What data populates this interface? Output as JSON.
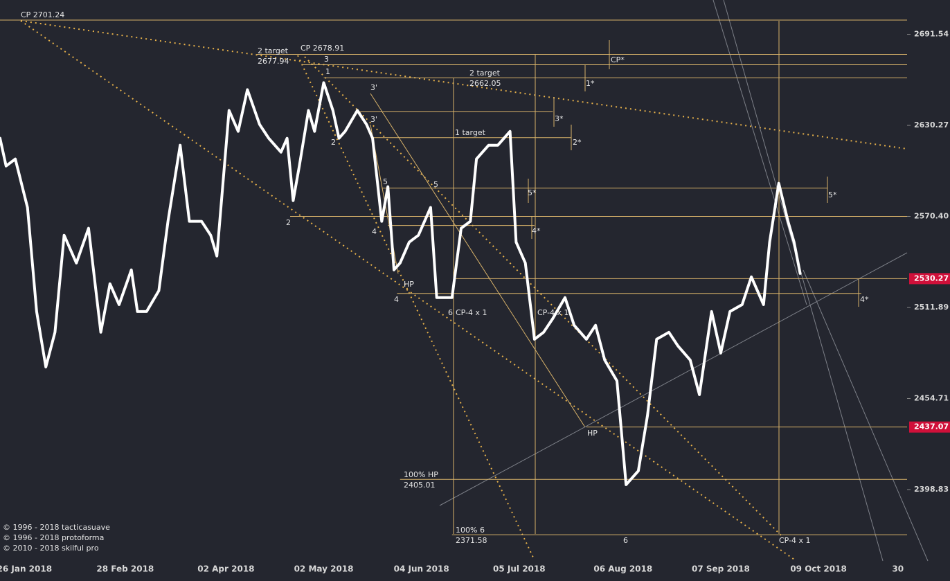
{
  "chart_data": {
    "type": "line",
    "log_scale": true,
    "xlim": [
      -8,
      289
    ],
    "ylim": [
      2358,
      2715
    ],
    "xticks": [
      {
        "value": 0,
        "label": "26 Jan 2018"
      },
      {
        "value": 33,
        "label": "28 Feb 2018"
      },
      {
        "value": 66,
        "label": "02 Apr 2018"
      },
      {
        "value": 98,
        "label": "02 May 2018"
      },
      {
        "value": 130,
        "label": "04 Jun 2018"
      },
      {
        "value": 162,
        "label": "05 Jul 2018"
      },
      {
        "value": 196,
        "label": "06 Aug 2018"
      },
      {
        "value": 228,
        "label": "07 Sep 2018"
      },
      {
        "value": 260,
        "label": "09 Oct 2018"
      },
      {
        "value": 286,
        "label": "30"
      }
    ],
    "yticks": [
      2398.83,
      2454.71,
      2511.89,
      {
        "value": 2570.4,
        "label": "2570.40"
      },
      2630.27,
      2691.54
    ],
    "marked_prices": [
      2530.27,
      2437.07
    ],
    "marked_color": "#d0103a",
    "series": [
      {
        "color": "#ffffff",
        "x": [
          -8,
          -6,
          -3,
          1,
          4,
          7,
          10,
          13,
          17,
          21,
          25,
          28,
          31,
          35,
          37,
          40,
          44,
          47,
          51,
          54,
          58,
          61,
          63,
          67,
          70,
          73,
          77,
          80,
          84,
          86,
          88,
          90,
          93,
          95,
          98,
          101,
          103,
          105,
          109,
          112,
          114,
          117,
          119,
          121,
          123,
          126,
          129,
          133,
          135,
          138,
          140,
          143,
          146,
          148,
          152,
          155,
          159,
          161,
          164,
          167,
          170,
          173,
          177,
          180,
          184,
          187,
          190,
          194,
          197,
          201,
          204,
          207,
          211,
          214,
          218,
          221,
          225,
          228,
          231,
          235,
          238,
          242,
          244,
          247,
          250,
          252,
          254
        ],
        "values": [
          2621.7,
          2603.4,
          2608.0,
          2576.2,
          2509.3,
          2474.4,
          2496.2,
          2558.2,
          2540.3,
          2562.7,
          2496.2,
          2527.0,
          2513.7,
          2535.9,
          2509.3,
          2509.3,
          2522.6,
          2567.2,
          2617.1,
          2567.2,
          2567.2,
          2558.2,
          2544.8,
          2640.2,
          2626.3,
          2654.1,
          2630.9,
          2621.7,
          2612.5,
          2621.7,
          2580.7,
          2603.4,
          2640.2,
          2626.3,
          2658.8,
          2640.2,
          2621.7,
          2626.3,
          2640.2,
          2630.9,
          2621.7,
          2567.2,
          2589.8,
          2535.9,
          2540.3,
          2553.7,
          2558.2,
          2576.2,
          2518.2,
          2518.2,
          2518.2,
          2562.7,
          2567.2,
          2608.0,
          2617.1,
          2617.1,
          2626.3,
          2553.7,
          2540.3,
          2491.8,
          2496.2,
          2504.9,
          2518.2,
          2500.6,
          2491.8,
          2500.6,
          2478.7,
          2465.7,
          2401.8,
          2410.2,
          2444.2,
          2491.8,
          2496.2,
          2487.5,
          2478.7,
          2457.1,
          2509.3,
          2483.1,
          2509.3,
          2513.7,
          2531.4,
          2513.7,
          2553.7,
          2592.0,
          2567.2,
          2553.7,
          2533.6
        ]
      }
    ],
    "levels": [
      {
        "value": 2701.24,
        "from": -8,
        "to": 289
      },
      {
        "value": 2677.94,
        "from": 76,
        "to": 289
      },
      {
        "value": 2670.9,
        "from": 91,
        "to": 289
      },
      {
        "value": 2662.05,
        "from": 98,
        "to": 289
      },
      {
        "value": 2639.3,
        "from": 109,
        "to": 173
      },
      {
        "value": 2622.1,
        "from": 114,
        "to": 179
      },
      {
        "value": 2588.9,
        "from": 117,
        "to": 263
      },
      {
        "value": 2570.4,
        "from": 87,
        "to": 289
      },
      {
        "value": 2564.5,
        "from": 119,
        "to": 167
      },
      {
        "value": 2530.27,
        "from": 141,
        "to": 289
      },
      {
        "value": 2520.8,
        "from": 122,
        "to": 274
      },
      {
        "value": 2437.07,
        "from": 184,
        "to": 289
      },
      {
        "value": 2405.01,
        "from": 123,
        "to": 289
      },
      {
        "value": 2371.58,
        "from": 140,
        "to": 289
      }
    ],
    "annotations": [
      "CP  2701.24",
      "2 target",
      "2677.94",
      "CP  2678.91",
      "CP*",
      "2 target",
      "2662.05",
      "1*",
      "3",
      "1",
      "3'",
      "3'",
      "3*",
      "2",
      "2*",
      "1 target",
      "5",
      "5",
      "5*",
      "5*",
      "2",
      "4",
      "4*",
      "HP",
      "4",
      "6",
      "CP-4 x 1",
      "CP-4 x 1",
      "HP",
      "4*",
      "100% HP",
      "2405.01",
      "100% 6",
      "2371.58",
      "6",
      "CP-4 x 1",
      "© 1996 - 2018 tacticasuave",
      "© 1996 - 2018 protoforma",
      "© 2010 - 2018 skilful pro"
    ]
  }
}
